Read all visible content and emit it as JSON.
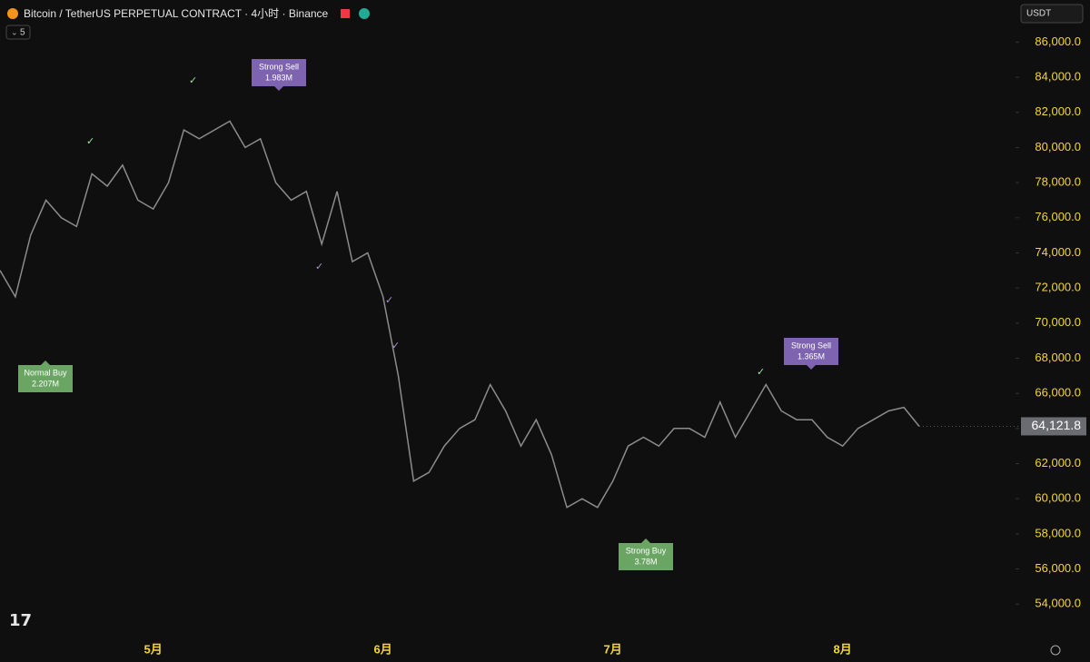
{
  "header": {
    "symbol": "Bitcoin / TetherUS PERPETUAL CONTRACT · 4小时 · Binance",
    "indicators": "5",
    "currency": "USDT"
  },
  "chart_data": {
    "type": "line",
    "categories": [
      null,
      null,
      null,
      null,
      null,
      null,
      null,
      null,
      null,
      null,
      "5月",
      null,
      null,
      null,
      null,
      null,
      null,
      null,
      null,
      null,
      null,
      null,
      null,
      null,
      null,
      "6月",
      null,
      null,
      null,
      null,
      null,
      null,
      null,
      null,
      null,
      null,
      null,
      null,
      null,
      null,
      "7月",
      null,
      null,
      null,
      null,
      null,
      null,
      null,
      null,
      null,
      null,
      null,
      null,
      null,
      null,
      "8月",
      null,
      null,
      null,
      null,
      null
    ],
    "values": [
      73000,
      71500,
      75000,
      77000,
      76000,
      75500,
      78500,
      77800,
      79000,
      77000,
      76500,
      78000,
      81000,
      80500,
      81000,
      81500,
      80000,
      80500,
      78000,
      77000,
      77500,
      74500,
      77500,
      73500,
      74000,
      71500,
      67000,
      61000,
      61500,
      63000,
      64000,
      64500,
      66500,
      65000,
      63000,
      64500,
      62500,
      59500,
      60000,
      59500,
      61000,
      63000,
      63500,
      63000,
      64000,
      64000,
      63500,
      65500,
      63500,
      65000,
      66500,
      65000,
      64500,
      64500,
      63500,
      63000,
      64000,
      64500,
      65000,
      65200,
      64121.8
    ],
    "value_labels": [
      null,
      null,
      null,
      null,
      null,
      null,
      null,
      null,
      null,
      null,
      null,
      null,
      null,
      null,
      null,
      null,
      null,
      null,
      null,
      null,
      null,
      null,
      null,
      null,
      null,
      null,
      null,
      null,
      null,
      null,
      null,
      null,
      null,
      null,
      null,
      null,
      null,
      null,
      null,
      null,
      null,
      null,
      null,
      null,
      null,
      null,
      null,
      null,
      null,
      null,
      null,
      null,
      null,
      null,
      null,
      null,
      null,
      null,
      null,
      null,
      "64,121.8"
    ],
    "color": "#8c8c8c",
    "ylim": [
      52200,
      88400
    ],
    "yticks": [
      {
        "value": 54000,
        "label": "54,000.0"
      },
      {
        "value": 56000,
        "label": "56,000.0"
      },
      {
        "value": 58000,
        "label": "58,000.0"
      },
      {
        "value": 60000,
        "label": "60,000.0"
      },
      {
        "value": 62000,
        "label": "62,000.0"
      },
      {
        "value": 64000,
        "label": "64,000.0"
      },
      {
        "value": 66000,
        "label": "66,000.0"
      },
      {
        "value": 68000,
        "label": "68,000.0"
      },
      {
        "value": 70000,
        "label": "70,000.0"
      },
      {
        "value": 72000,
        "label": "72,000.0"
      },
      {
        "value": 74000,
        "label": "74,000.0"
      },
      {
        "value": 76000,
        "label": "76,000.0"
      },
      {
        "value": 78000,
        "label": "78,000.0"
      },
      {
        "value": 80000,
        "label": "80,000.0"
      },
      {
        "value": 82000,
        "label": "82,000.0"
      },
      {
        "value": 84000,
        "label": "84,000.0"
      },
      {
        "value": 86000,
        "label": "86,000.0"
      }
    ],
    "annotations": [
      {
        "title": "Normal Buy",
        "amount": "2.207M"
      },
      {
        "title": "Strong Sell",
        "amount": "1.983M"
      },
      {
        "title": "Strong Buy",
        "amount": "3.78M"
      },
      {
        "title": "Strong Sell",
        "amount": "1.365M"
      }
    ]
  }
}
